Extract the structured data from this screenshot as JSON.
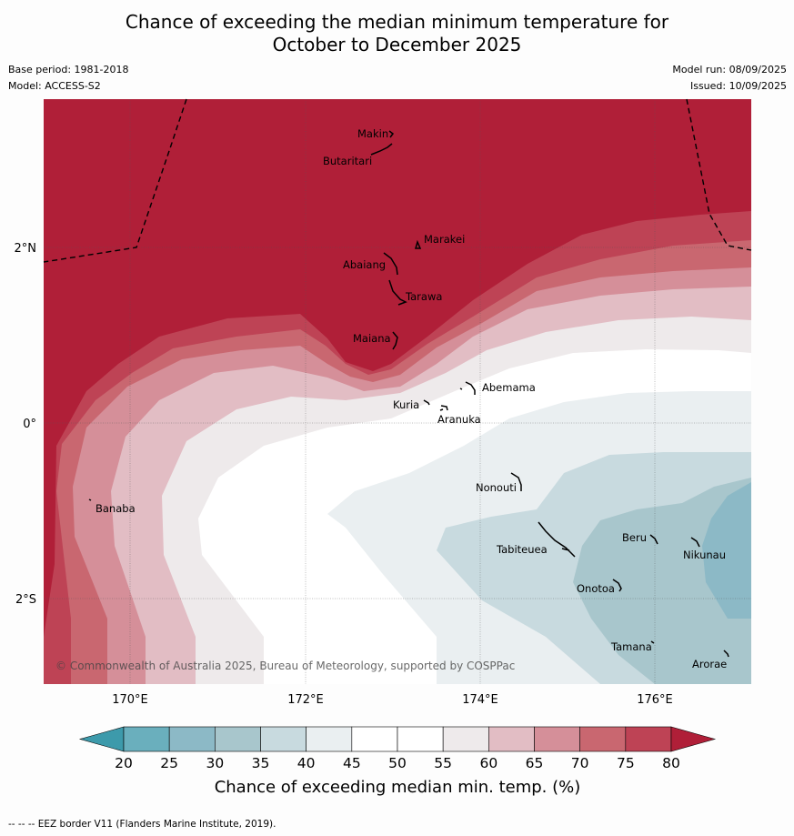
{
  "title": {
    "line1": "Chance of exceeding the median minimum temperature for",
    "line2": "October to December 2025"
  },
  "meta": {
    "base_period": "Base period: 1981-2018",
    "model": "Model: ACCESS-S2",
    "model_run": "Model run: 08/09/2025",
    "issued": "Issued: 10/09/2025"
  },
  "axes": {
    "lon_ticks": [
      "170°E",
      "172°E",
      "174°E",
      "176°E"
    ],
    "lat_ticks": [
      "2°N",
      "0°",
      "2°S"
    ]
  },
  "places": {
    "makin": "Makin",
    "butaritari": "Butaritari",
    "marakei": "Marakei",
    "abaiang": "Abaiang",
    "tarawa": "Tarawa",
    "maiana": "Maiana",
    "abemama": "Abemama",
    "kuria": "Kuria",
    "aranuka": "Aranuka",
    "nonouti": "Nonouti",
    "banaba": "Banaba",
    "beru": "Beru",
    "tabiteuea": "Tabiteuea",
    "nikunau": "Nikunau",
    "onotoa": "Onotoa",
    "tamana": "Tamana",
    "arorae": "Arorae"
  },
  "copyright": "© Commonwealth of Australia 2025, Bureau of Meteorology, supported by COSPPac",
  "colorbar": {
    "label": "Chance of exceeding median min. temp. (%)",
    "ticks": [
      "20",
      "25",
      "30",
      "35",
      "40",
      "45",
      "50",
      "55",
      "60",
      "65",
      "70",
      "75",
      "80"
    ],
    "colors": [
      "#6aafbd",
      "#8cb9c6",
      "#a8c6cc",
      "#c8dadf",
      "#eaeff1",
      "#ffffff",
      "#ffffff",
      "#eeeaeb",
      "#e2bdc4",
      "#d58f99",
      "#c96770",
      "#be4355"
    ],
    "low_color": "#3d9aab",
    "high_color": "#b01f38"
  },
  "footer": "--  --  -- EEZ border V11 (Flanders Marine Institute, 2019)."
}
